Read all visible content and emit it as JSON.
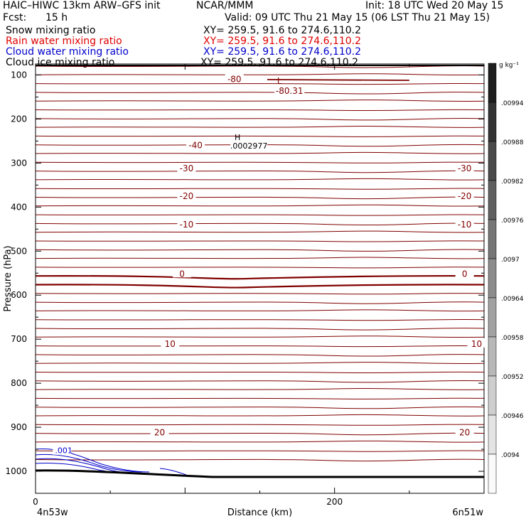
{
  "header": {
    "model": "HAIC–HIWC 13km ARW–GFS init",
    "org": "NCAR/MMM",
    "init": "Init: 18 UTC Wed 20 May 15",
    "fcst_label": "Fcst:",
    "fcst_value": "15 h",
    "valid": "Valid: 09 UTC Thu 21 May 15 (06 LST Thu 21 May 15)"
  },
  "fields": [
    {
      "name": "Snow mixing ratio",
      "xy": "XY= 259.5, 91.6 to 274.6,110.2",
      "color": "#000000"
    },
    {
      "name": "Rain water mixing ratio",
      "xy": "XY= 259.5, 91.6 to 274.6,110.2",
      "color": "#e00000"
    },
    {
      "name": "Cloud water mixing ratio",
      "xy": "XY= 259.5, 91.6 to 274.6,110.2",
      "color": "#0000cc"
    },
    {
      "name": "Cloud ice mixing ratio",
      "xy": "XY= 259.5, 91.6 to 274.6,110.2",
      "color": "#000000"
    }
  ],
  "chart_data": {
    "type": "cross-section contour",
    "xlabel": "Distance (km)",
    "ylabel": "Pressure (hPa)",
    "xlim": [
      0,
      300
    ],
    "x_ticks": [
      0,
      200
    ],
    "ylim": [
      1050,
      75
    ],
    "y_ticks": [
      100,
      200,
      300,
      400,
      500,
      600,
      700,
      800,
      900,
      1000
    ],
    "x_endpoints": {
      "left": "4n53w",
      "right": "6n51w"
    },
    "temperature_isotherms": {
      "color": "#800000",
      "labels": [
        {
          "text": "-80",
          "x": 133,
          "p": 108
        },
        {
          "text": "-40",
          "x": 107,
          "p": 258
        },
        {
          "text": "-30",
          "x": 101,
          "p": 311
        },
        {
          "text": "-30",
          "x": 287,
          "p": 311
        },
        {
          "text": "-20",
          "x": 101,
          "p": 374
        },
        {
          "text": "-20",
          "x": 287,
          "p": 374
        },
        {
          "text": "-10",
          "x": 101,
          "p": 438
        },
        {
          "text": "-10",
          "x": 287,
          "p": 438
        },
        {
          "text": "0",
          "x": 98,
          "p": 550
        },
        {
          "text": "0",
          "x": 287,
          "p": 550
        },
        {
          "text": "10",
          "x": 90,
          "p": 709
        },
        {
          "text": "10",
          "x": 295,
          "p": 709
        },
        {
          "text": "20",
          "x": 83,
          "p": 910
        },
        {
          "text": "20",
          "x": 287,
          "p": 910
        }
      ],
      "extremes": [
        {
          "mark": "L",
          "value": "-80.31",
          "x": 157,
          "p": 94
        },
        {
          "mark": "H",
          "value": ".0002977",
          "x": 137,
          "p": 240
        }
      ]
    },
    "cloud_water": {
      "color": "#0000cc",
      "label": ".001",
      "x": 13,
      "p": 964
    },
    "colorbar": {
      "unit": "g kg⁻¹",
      "labels": [
        ".0094",
        ".00946",
        ".00952",
        ".00958",
        ".00964",
        ".0097",
        ".00976",
        ".00982",
        ".00988",
        ".00994"
      ]
    }
  }
}
